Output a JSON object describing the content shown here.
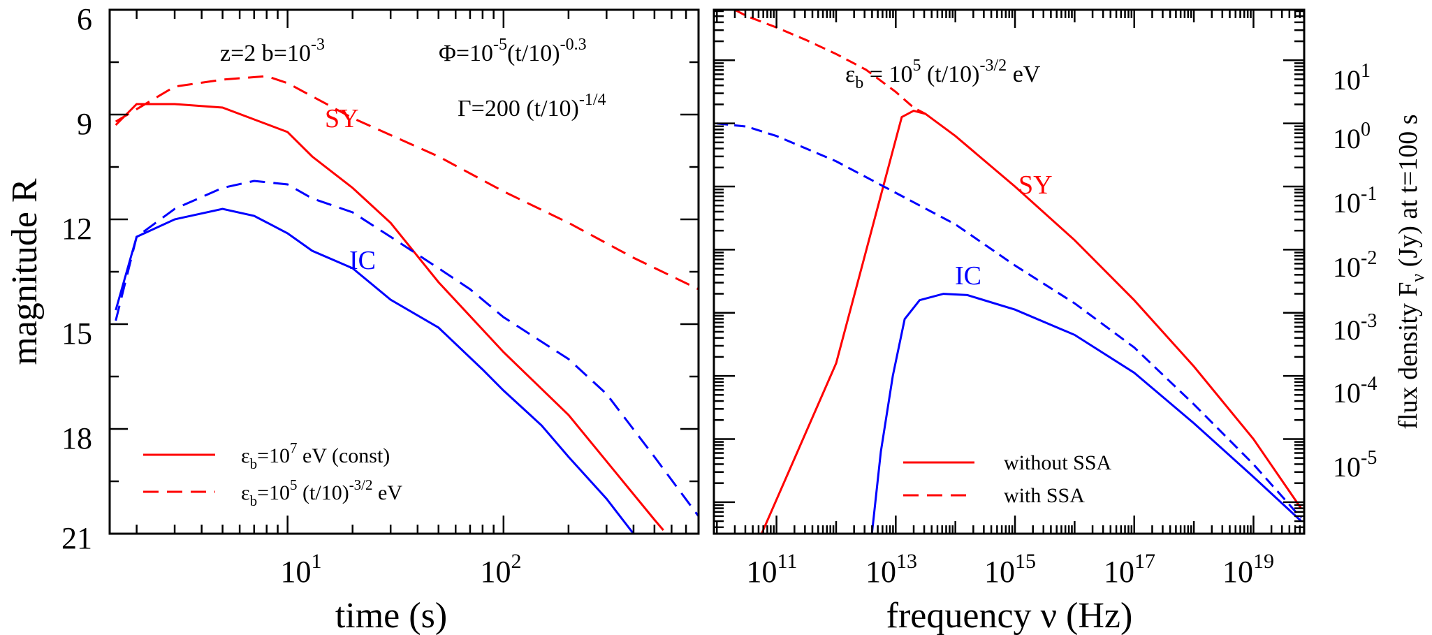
{
  "colors": {
    "sy": "#ff0000",
    "ic": "#0000ff",
    "axis": "#000000"
  },
  "chart_data": [
    {
      "type": "line",
      "id": "left",
      "xlabel": "time (s)",
      "ylabel": "magnitude R",
      "xscale": "log",
      "xlim": [
        1.5,
        800
      ],
      "ylim": [
        6,
        21
      ],
      "y_inverted": true,
      "yticks": [
        "6",
        "9",
        "12",
        "15",
        "18",
        "21"
      ],
      "xticks": [
        {
          "value": 10,
          "base": "10",
          "exp": "1"
        },
        {
          "value": 100,
          "base": "10",
          "exp": "2"
        }
      ],
      "annotations": {
        "zb": {
          "a": "z=2  b=10",
          "sup": "-3"
        },
        "phi": {
          "a": "Φ=10",
          "s1": "-5",
          "b": "(t/10)",
          "s2": "-0.3"
        },
        "gamma": {
          "a": "Γ=200 (t/10)",
          "s1": "-1/4"
        },
        "sy": "SY",
        "ic": "IC"
      },
      "legend": [
        {
          "style": "solid",
          "color": "#ff0000",
          "p1": "ε",
          "sub": "b",
          "p2": "=10",
          "sup": "7",
          "p3": " eV (const)"
        },
        {
          "style": "dashed",
          "color": "#ff0000",
          "p1": "ε",
          "sub": "b",
          "p2": "=10",
          "sup": "5",
          "p3": " (t/10)",
          "sup2": "-3/2",
          "p4": " eV"
        }
      ],
      "series": [
        {
          "name": "SY solid",
          "color": "#ff0000",
          "dash": false,
          "points": [
            [
              1.6,
              9.3
            ],
            [
              2.0,
              8.7
            ],
            [
              3.0,
              8.7
            ],
            [
              5.0,
              8.8
            ],
            [
              10.0,
              9.5
            ],
            [
              13,
              10.2
            ],
            [
              20,
              11.1
            ],
            [
              30,
              12.1
            ],
            [
              50,
              13.8
            ],
            [
              100,
              15.8
            ],
            [
              200,
              17.6
            ],
            [
              500,
              20.6
            ],
            [
              550,
              20.9
            ]
          ]
        },
        {
          "name": "SY dashed",
          "color": "#ff0000",
          "dash": true,
          "points": [
            [
              1.6,
              9.2
            ],
            [
              3.0,
              8.2
            ],
            [
              5.0,
              8.0
            ],
            [
              8.0,
              7.9
            ],
            [
              10.0,
              8.1
            ],
            [
              20,
              9.1
            ],
            [
              50,
              10.2
            ],
            [
              100,
              11.2
            ],
            [
              200,
              12.1
            ],
            [
              400,
              13.1
            ],
            [
              800,
              14.0
            ]
          ]
        },
        {
          "name": "IC solid",
          "color": "#0000ff",
          "dash": false,
          "points": [
            [
              1.6,
              14.6
            ],
            [
              2.0,
              12.5
            ],
            [
              3.0,
              12.0
            ],
            [
              5.0,
              11.7
            ],
            [
              7,
              11.9
            ],
            [
              10,
              12.4
            ],
            [
              13,
              12.9
            ],
            [
              20,
              13.4
            ],
            [
              30,
              14.3
            ],
            [
              50,
              15.1
            ],
            [
              80,
              16.3
            ],
            [
              100,
              16.9
            ],
            [
              150,
              17.9
            ],
            [
              200,
              18.8
            ],
            [
              300,
              20.0
            ],
            [
              400,
              21.0
            ]
          ]
        },
        {
          "name": "IC dashed",
          "color": "#0000ff",
          "dash": true,
          "points": [
            [
              1.6,
              14.9
            ],
            [
              2.0,
              12.5
            ],
            [
              3.0,
              11.7
            ],
            [
              5.0,
              11.1
            ],
            [
              7,
              10.9
            ],
            [
              10,
              11.0
            ],
            [
              13,
              11.4
            ],
            [
              20,
              11.8
            ],
            [
              30,
              12.5
            ],
            [
              50,
              13.4
            ],
            [
              70,
              14.0
            ],
            [
              100,
              14.8
            ],
            [
              200,
              16.0
            ],
            [
              300,
              17.0
            ],
            [
              500,
              18.8
            ],
            [
              800,
              20.5
            ]
          ]
        }
      ]
    },
    {
      "type": "line",
      "id": "right",
      "xlabel": "frequency ν (Hz)",
      "ylabel": {
        "a": "flux density F",
        "sub": "ν",
        "b": " (Jy) at t=100 s"
      },
      "xscale": "log",
      "yscale": "log",
      "xlim_log10": [
        9.95,
        19.85
      ],
      "ylim_log10": [
        -6.5,
        1.8
      ],
      "xticks": [
        {
          "value_log10": 11,
          "base": "10",
          "exp": "11"
        },
        {
          "value_log10": 13,
          "base": "10",
          "exp": "13"
        },
        {
          "value_log10": 15,
          "base": "10",
          "exp": "15"
        },
        {
          "value_log10": 17,
          "base": "10",
          "exp": "17"
        },
        {
          "value_log10": 19,
          "base": "10",
          "exp": "19"
        }
      ],
      "yticks": [
        {
          "value_log10": 1,
          "base": "10",
          "exp": "1"
        },
        {
          "value_log10": 0,
          "base": "10",
          "exp": "0"
        },
        {
          "value_log10": -1,
          "base": "10",
          "exp": "-1"
        },
        {
          "value_log10": -2,
          "base": "10",
          "exp": "-2"
        },
        {
          "value_log10": -3,
          "base": "10",
          "exp": "-3"
        },
        {
          "value_log10": -4,
          "base": "10",
          "exp": "-4"
        },
        {
          "value_log10": -5,
          "base": "10",
          "exp": "-5"
        }
      ],
      "annotations": {
        "eps": {
          "a": "ε",
          "sub": "b",
          "b": " = 10",
          "s1": "5",
          "c": " (t/10)",
          "s2": "-3/2",
          "d": " eV"
        },
        "sy": "SY",
        "ic": "IC"
      },
      "legend": [
        {
          "style": "solid",
          "color": "#ff0000",
          "label": "without SSA"
        },
        {
          "style": "dashed",
          "color": "#ff0000",
          "label": "with SSA"
        }
      ],
      "series": [
        {
          "name": "SY without SSA",
          "color": "#ff0000",
          "dash": false,
          "points": [
            [
              10.75,
              -6.5
            ],
            [
              12.0,
              -3.8
            ],
            [
              13.1,
              0.1
            ],
            [
              13.3,
              0.2
            ],
            [
              13.5,
              0.15
            ],
            [
              14,
              -0.2
            ],
            [
              15,
              -1.0
            ],
            [
              16,
              -1.85
            ],
            [
              17,
              -2.8
            ],
            [
              18,
              -3.85
            ],
            [
              19,
              -5.0
            ],
            [
              19.8,
              -6.1
            ]
          ]
        },
        {
          "name": "SY with SSA",
          "color": "#ff0000",
          "dash": true,
          "points": [
            [
              10.3,
              1.8
            ],
            [
              10.5,
              1.7
            ],
            [
              11.0,
              1.52
            ],
            [
              11.5,
              1.32
            ],
            [
              12.0,
              1.1
            ],
            [
              12.5,
              0.85
            ],
            [
              13.0,
              0.5
            ],
            [
              13.3,
              0.25
            ],
            [
              13.5,
              0.15
            ]
          ]
        },
        {
          "name": "IC without SSA",
          "color": "#0000ff",
          "dash": false,
          "points": [
            [
              12.6,
              -6.5
            ],
            [
              12.75,
              -5.2
            ],
            [
              12.95,
              -4.0
            ],
            [
              13.15,
              -3.1
            ],
            [
              13.4,
              -2.8
            ],
            [
              13.8,
              -2.7
            ],
            [
              14.2,
              -2.72
            ],
            [
              15,
              -2.95
            ],
            [
              16,
              -3.35
            ],
            [
              17,
              -3.95
            ],
            [
              18,
              -4.75
            ],
            [
              19,
              -5.6
            ],
            [
              19.8,
              -6.3
            ]
          ]
        },
        {
          "name": "IC with SSA",
          "color": "#0000ff",
          "dash": true,
          "points": [
            [
              10.0,
              0.0
            ],
            [
              10.5,
              -0.05
            ],
            [
              11.0,
              -0.2
            ],
            [
              12.0,
              -0.6
            ],
            [
              13.0,
              -1.1
            ],
            [
              14.0,
              -1.6
            ],
            [
              15.0,
              -2.25
            ],
            [
              16.0,
              -2.85
            ],
            [
              17.0,
              -3.55
            ],
            [
              18.0,
              -4.45
            ],
            [
              19.0,
              -5.4
            ],
            [
              19.8,
              -6.25
            ]
          ]
        }
      ]
    }
  ]
}
